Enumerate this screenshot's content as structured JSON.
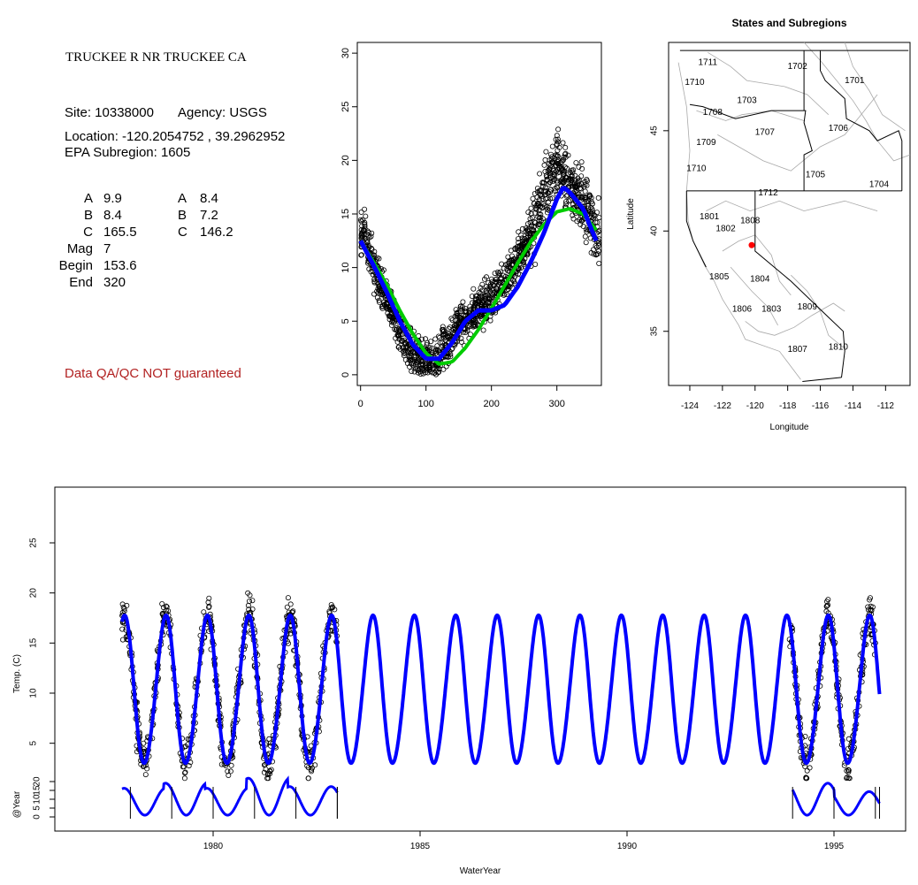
{
  "site_panel": {
    "title": "TRUCKEE R NR TRUCKEE CA",
    "site_line": "Site: 10338000",
    "agency_line": "Agency: USGS",
    "location_line": "Location: -120.2054752 , 39.2962952",
    "subregion_line": "EPA Subregion: 1605",
    "coef_rows": [
      {
        "label": "A",
        "v1": "9.9",
        "label2": "A",
        "v2": "8.4"
      },
      {
        "label": "B",
        "v1": "8.4",
        "label2": "B",
        "v2": "7.2"
      },
      {
        "label": "C",
        "v1": "165.5",
        "label2": "C",
        "v2": "146.2"
      },
      {
        "label": "Mag",
        "v1": "7",
        "label2": "",
        "v2": ""
      },
      {
        "label": "Begin",
        "v1": "153.6",
        "label2": "",
        "v2": ""
      },
      {
        "label": "End",
        "v1": "320",
        "label2": "",
        "v2": ""
      }
    ],
    "qa_text": "Data QA/QC NOT guaranteed",
    "qa_color": "#b22222"
  },
  "chart_data": [
    {
      "type": "scatter",
      "title": "",
      "xlabel": "",
      "ylabel": "",
      "xlim": [
        -5,
        368
      ],
      "ylim": [
        -1,
        31
      ],
      "x_ticks": [
        "0",
        "100",
        "200",
        "300"
      ],
      "y_ticks": [
        "0",
        "5",
        "10",
        "15",
        "20",
        "25",
        "30"
      ],
      "grid": false,
      "series": [
        {
          "color": "#000000",
          "style": "open-circles",
          "x": [
            0,
            5,
            10,
            20,
            30,
            40,
            50,
            60,
            70,
            80,
            90,
            100,
            110,
            120,
            130,
            140,
            150,
            160,
            170,
            180,
            190,
            200,
            210,
            220,
            230,
            240,
            250,
            260,
            270,
            280,
            290,
            300,
            310,
            320,
            330,
            340,
            350,
            360
          ],
          "y": [
            12.5,
            14.5,
            12,
            10,
            8.5,
            7,
            5.5,
            4,
            3,
            2,
            1.5,
            1,
            1.2,
            1.8,
            2.5,
            3.5,
            4.5,
            5,
            5.5,
            6,
            6.5,
            7,
            8,
            9,
            10,
            11,
            12,
            13,
            15,
            17,
            18.5,
            19.5,
            19,
            18,
            17,
            16,
            15,
            13
          ]
        },
        {
          "color": "#0000ff",
          "style": "line",
          "x": [
            0,
            20,
            40,
            60,
            80,
            100,
            120,
            140,
            160,
            180,
            200,
            220,
            240,
            260,
            280,
            300,
            310,
            320,
            340,
            360
          ],
          "y": [
            12.5,
            10.2,
            7.7,
            5,
            2.8,
            1.5,
            1.5,
            3,
            5,
            6,
            6,
            6.5,
            8.2,
            10.5,
            13.2,
            16.4,
            17.5,
            17,
            15.5,
            12.5
          ]
        },
        {
          "color": "#00cc00",
          "style": "line",
          "x": [
            0,
            20,
            40,
            60,
            80,
            100,
            120,
            140,
            160,
            180,
            200,
            220,
            240,
            260,
            280,
            300,
            320,
            340,
            360
          ],
          "y": [
            12.5,
            10.5,
            8.4,
            6,
            3.8,
            2,
            1,
            1.2,
            2.5,
            4.2,
            6.2,
            8.3,
            10.4,
            12.4,
            14,
            15.2,
            15.5,
            15,
            13.5
          ]
        }
      ]
    },
    {
      "type": "map",
      "title": "States and Subregions",
      "xlabel": "Longitude",
      "ylabel": "Latitude",
      "xlim": [
        -125.3,
        -110.5
      ],
      "ylim": [
        32.3,
        49.4
      ],
      "x_ticks": [
        "-124",
        "-122",
        "-120",
        "-118",
        "-116",
        "-114",
        "-112"
      ],
      "y_ticks": [
        "35",
        "40",
        "45"
      ],
      "region_labels": [
        {
          "label": "1711",
          "lon": -122.9,
          "lat": 48.4
        },
        {
          "label": "1710",
          "lon": -123.7,
          "lat": 47.4
        },
        {
          "label": "1702",
          "lon": -117.4,
          "lat": 48.2
        },
        {
          "label": "1701",
          "lon": -113.9,
          "lat": 47.5
        },
        {
          "label": "1703",
          "lon": -120.5,
          "lat": 46.5
        },
        {
          "label": "1708",
          "lon": -122.6,
          "lat": 45.9
        },
        {
          "label": "1706",
          "lon": -114.9,
          "lat": 45.1
        },
        {
          "label": "1707",
          "lon": -119.4,
          "lat": 44.9
        },
        {
          "label": "1709",
          "lon": -123.0,
          "lat": 44.4
        },
        {
          "label": "1710",
          "lon": -123.6,
          "lat": 43.1
        },
        {
          "label": "1705",
          "lon": -116.3,
          "lat": 42.8
        },
        {
          "label": "1704",
          "lon": -112.4,
          "lat": 42.3
        },
        {
          "label": "1712",
          "lon": -119.2,
          "lat": 41.9
        },
        {
          "label": "1801",
          "lon": -122.8,
          "lat": 40.7
        },
        {
          "label": "1808",
          "lon": -120.3,
          "lat": 40.5
        },
        {
          "label": "1802",
          "lon": -121.8,
          "lat": 40.1
        },
        {
          "label": "1805",
          "lon": -122.2,
          "lat": 37.7
        },
        {
          "label": "1804",
          "lon": -119.7,
          "lat": 37.6
        },
        {
          "label": "1806",
          "lon": -120.8,
          "lat": 36.1
        },
        {
          "label": "1803",
          "lon": -119.0,
          "lat": 36.1
        },
        {
          "label": "1809",
          "lon": -116.8,
          "lat": 36.2
        },
        {
          "label": "1810",
          "lon": -114.9,
          "lat": 34.2
        },
        {
          "label": "1807",
          "lon": -117.4,
          "lat": 34.1
        }
      ],
      "site": {
        "lon": -120.2054752,
        "lat": 39.2962952,
        "color": "#ff0000"
      }
    },
    {
      "type": "line",
      "title": "",
      "xlabel": "WaterYear",
      "ylabel": "Temp. (C)",
      "xlim": [
        1976.4,
        1996.8
      ],
      "ylim": [
        -1,
        31
      ],
      "x_ticks": [
        "1980",
        "1985",
        "1990",
        "1995"
      ],
      "y_ticks": [
        "5",
        "10",
        "15",
        "20",
        "25"
      ],
      "grid": false,
      "observed_years": [
        1978,
        1979,
        1980,
        1981,
        1982,
        1983,
        1994,
        1995,
        1996
      ],
      "series": [
        {
          "color": "#0000ff",
          "style": "line",
          "x_range": [
            1977.8,
            1996.1
          ],
          "annual_peak": 17.5,
          "annual_trough": 2.8
        },
        {
          "color": "#000000",
          "style": "open-circles",
          "x_range": [
            1977.8,
            1996.1
          ],
          "obs_max": 21,
          "obs_min": 1.5
        }
      ]
    },
    {
      "type": "line",
      "title": "",
      "xlabel": "",
      "ylabel": "@Year",
      "ylim": [
        -1,
        25
      ],
      "y_ticks": [
        "0",
        "5",
        "10",
        "15",
        "20"
      ],
      "grid": false,
      "segments": [
        {
          "start": 1977.8,
          "end": 1983.0,
          "peaks": [
            17,
            20,
            17,
            23,
            18
          ]
        },
        {
          "start": 1994.0,
          "end": 1996.1,
          "peaks": [
            20,
            15
          ]
        }
      ],
      "series": [
        {
          "color": "#0000ff",
          "style": "line"
        }
      ]
    }
  ]
}
